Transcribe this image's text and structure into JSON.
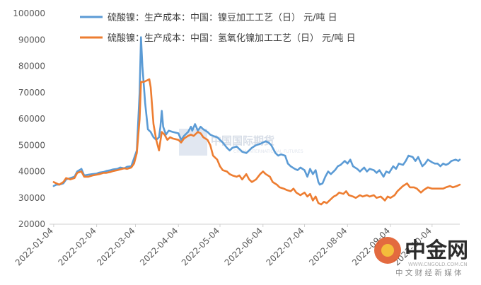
{
  "chart_data": {
    "type": "line",
    "title": "",
    "xlabel": "",
    "ylabel": "",
    "ylim": [
      20000,
      100000
    ],
    "yticks": [
      20000,
      30000,
      40000,
      50000,
      60000,
      70000,
      80000,
      90000,
      100000
    ],
    "ytick_labels": [
      "20000",
      "30000",
      "40000",
      "50000",
      "60000",
      "70000",
      "80000",
      "90000",
      "100000"
    ],
    "xlim": [
      "2022-01-01",
      "2022-10-24"
    ],
    "xticks": [
      "2022-01-04",
      "2022-02-04",
      "2022-03-04",
      "2022-04-04",
      "2022-05-04",
      "2022-06-04",
      "2022-07-04",
      "2022-08-04",
      "2022-09-04",
      "2022-10-04"
    ],
    "grid": false,
    "legend_position": "top",
    "series": [
      {
        "name": "硫酸镍：生产成本：中国：镍豆加工工艺（日） 元/吨 日",
        "color": "#5b9bd5",
        "points": [
          [
            "2022-01-04",
            34500
          ],
          [
            "2022-01-06",
            35000
          ],
          [
            "2022-01-08",
            35000
          ],
          [
            "2022-01-11",
            35500
          ],
          [
            "2022-01-13",
            37000
          ],
          [
            "2022-01-16",
            37500
          ],
          [
            "2022-01-19",
            38000
          ],
          [
            "2022-01-21",
            40000
          ],
          [
            "2022-01-24",
            41000
          ],
          [
            "2022-01-26",
            38500
          ],
          [
            "2022-01-29",
            38800
          ],
          [
            "2022-02-01",
            39000
          ],
          [
            "2022-02-04",
            39200
          ],
          [
            "2022-02-06",
            39600
          ],
          [
            "2022-02-09",
            39800
          ],
          [
            "2022-02-11",
            40200
          ],
          [
            "2022-02-14",
            40500
          ],
          [
            "2022-02-16",
            40800
          ],
          [
            "2022-02-19",
            41000
          ],
          [
            "2022-02-21",
            41500
          ],
          [
            "2022-02-24",
            41200
          ],
          [
            "2022-02-26",
            41800
          ],
          [
            "2022-03-01",
            42000
          ],
          [
            "2022-03-03",
            45000
          ],
          [
            "2022-03-05",
            48000
          ],
          [
            "2022-03-07",
            70000
          ],
          [
            "2022-03-08",
            91000
          ],
          [
            "2022-03-09",
            80000
          ],
          [
            "2022-03-11",
            66000
          ],
          [
            "2022-03-13",
            56000
          ],
          [
            "2022-03-15",
            55000
          ],
          [
            "2022-03-17",
            53000
          ],
          [
            "2022-03-19",
            52000
          ],
          [
            "2022-03-21",
            53000
          ],
          [
            "2022-03-22",
            57000
          ],
          [
            "2022-03-23",
            63000
          ],
          [
            "2022-03-24",
            57000
          ],
          [
            "2022-03-26",
            54000
          ],
          [
            "2022-03-28",
            55500
          ],
          [
            "2022-03-31",
            55000
          ],
          [
            "2022-04-04",
            54500
          ],
          [
            "2022-04-06",
            52000
          ],
          [
            "2022-04-08",
            53500
          ],
          [
            "2022-04-11",
            55000
          ],
          [
            "2022-04-13",
            57000
          ],
          [
            "2022-04-14",
            55500
          ],
          [
            "2022-04-16",
            58000
          ],
          [
            "2022-04-18",
            55500
          ],
          [
            "2022-04-20",
            57000
          ],
          [
            "2022-04-22",
            56000
          ],
          [
            "2022-04-25",
            55000
          ],
          [
            "2022-04-27",
            54000
          ],
          [
            "2022-04-29",
            53500
          ],
          [
            "2022-05-02",
            53000
          ],
          [
            "2022-05-04",
            52000
          ],
          [
            "2022-05-06",
            51000
          ],
          [
            "2022-05-09",
            49000
          ],
          [
            "2022-05-11",
            48000
          ],
          [
            "2022-05-13",
            49000
          ],
          [
            "2022-05-16",
            49500
          ],
          [
            "2022-05-18",
            48500
          ],
          [
            "2022-05-20",
            47500
          ],
          [
            "2022-05-23",
            47000
          ],
          [
            "2022-05-25",
            48000
          ],
          [
            "2022-05-27",
            49000
          ],
          [
            "2022-05-30",
            50000
          ],
          [
            "2022-06-02",
            50500
          ],
          [
            "2022-06-04",
            51000
          ],
          [
            "2022-06-06",
            51500
          ],
          [
            "2022-06-08",
            51000
          ],
          [
            "2022-06-10",
            50000
          ],
          [
            "2022-06-13",
            47000
          ],
          [
            "2022-06-15",
            46000
          ],
          [
            "2022-06-17",
            46500
          ],
          [
            "2022-06-20",
            46000
          ],
          [
            "2022-06-22",
            43000
          ],
          [
            "2022-06-24",
            42000
          ],
          [
            "2022-06-27",
            41000
          ],
          [
            "2022-06-29",
            40500
          ],
          [
            "2022-07-01",
            41500
          ],
          [
            "2022-07-04",
            40500
          ],
          [
            "2022-07-06",
            38000
          ],
          [
            "2022-07-08",
            41000
          ],
          [
            "2022-07-10",
            39000
          ],
          [
            "2022-07-12",
            40500
          ],
          [
            "2022-07-14",
            36000
          ],
          [
            "2022-07-15",
            35000
          ],
          [
            "2022-07-17",
            35500
          ],
          [
            "2022-07-19",
            38000
          ],
          [
            "2022-07-21",
            40000
          ],
          [
            "2022-07-23",
            39000
          ],
          [
            "2022-07-26",
            40500
          ],
          [
            "2022-07-28",
            42000
          ],
          [
            "2022-07-30",
            42500
          ],
          [
            "2022-08-02",
            44000
          ],
          [
            "2022-08-04",
            43000
          ],
          [
            "2022-08-06",
            44500
          ],
          [
            "2022-08-08",
            42000
          ],
          [
            "2022-08-11",
            41000
          ],
          [
            "2022-08-13",
            40000
          ],
          [
            "2022-08-16",
            41500
          ],
          [
            "2022-08-18",
            40000
          ],
          [
            "2022-08-20",
            41000
          ],
          [
            "2022-08-23",
            40500
          ],
          [
            "2022-08-25",
            39500
          ],
          [
            "2022-08-27",
            40500
          ],
          [
            "2022-08-30",
            38000
          ],
          [
            "2022-09-01",
            40000
          ],
          [
            "2022-09-03",
            39500
          ],
          [
            "2022-09-06",
            42000
          ],
          [
            "2022-09-08",
            41000
          ],
          [
            "2022-09-10",
            43000
          ],
          [
            "2022-09-13",
            42500
          ],
          [
            "2022-09-15",
            44000
          ],
          [
            "2022-09-17",
            46000
          ],
          [
            "2022-09-20",
            45500
          ],
          [
            "2022-09-22",
            44000
          ],
          [
            "2022-09-24",
            45500
          ],
          [
            "2022-09-27",
            42000
          ],
          [
            "2022-09-29",
            43000
          ],
          [
            "2022-10-01",
            44500
          ],
          [
            "2022-10-04",
            43500
          ],
          [
            "2022-10-06",
            43000
          ],
          [
            "2022-10-08",
            43000
          ],
          [
            "2022-10-10",
            42000
          ],
          [
            "2022-10-12",
            43000
          ],
          [
            "2022-10-14",
            42500
          ],
          [
            "2022-10-16",
            43000
          ],
          [
            "2022-10-18",
            44000
          ],
          [
            "2022-10-21",
            44500
          ],
          [
            "2022-10-23",
            44000
          ],
          [
            "2022-10-24",
            44500
          ]
        ]
      },
      {
        "name": "硫酸镍：生产成本：中国：氢氧化镍加工工艺（日） 元/吨 日",
        "color": "#ed7d31",
        "points": [
          [
            "2022-01-04",
            36000
          ],
          [
            "2022-01-06",
            35500
          ],
          [
            "2022-01-08",
            35000
          ],
          [
            "2022-01-11",
            36000
          ],
          [
            "2022-01-13",
            37500
          ],
          [
            "2022-01-16",
            37000
          ],
          [
            "2022-01-19",
            37500
          ],
          [
            "2022-01-21",
            39500
          ],
          [
            "2022-01-24",
            40000
          ],
          [
            "2022-01-26",
            38000
          ],
          [
            "2022-01-29",
            38000
          ],
          [
            "2022-02-01",
            38500
          ],
          [
            "2022-02-04",
            38800
          ],
          [
            "2022-02-06",
            39000
          ],
          [
            "2022-02-09",
            39500
          ],
          [
            "2022-02-11",
            39500
          ],
          [
            "2022-02-14",
            39800
          ],
          [
            "2022-02-16",
            40200
          ],
          [
            "2022-02-19",
            40500
          ],
          [
            "2022-02-21",
            40800
          ],
          [
            "2022-02-24",
            41200
          ],
          [
            "2022-02-26",
            41000
          ],
          [
            "2022-03-01",
            41500
          ],
          [
            "2022-03-03",
            43000
          ],
          [
            "2022-03-05",
            47000
          ],
          [
            "2022-03-07",
            60000
          ],
          [
            "2022-03-08",
            74000
          ],
          [
            "2022-03-10",
            74000
          ],
          [
            "2022-03-12",
            74500
          ],
          [
            "2022-03-14",
            75000
          ],
          [
            "2022-03-15",
            72000
          ],
          [
            "2022-03-17",
            58000
          ],
          [
            "2022-03-19",
            52000
          ],
          [
            "2022-03-21",
            48000
          ],
          [
            "2022-03-23",
            55000
          ],
          [
            "2022-03-25",
            54000
          ],
          [
            "2022-03-27",
            52000
          ],
          [
            "2022-03-29",
            53000
          ],
          [
            "2022-03-31",
            52500
          ],
          [
            "2022-04-04",
            52000
          ],
          [
            "2022-04-06",
            51000
          ],
          [
            "2022-04-08",
            52500
          ],
          [
            "2022-04-11",
            53500
          ],
          [
            "2022-04-13",
            54000
          ],
          [
            "2022-04-15",
            53500
          ],
          [
            "2022-04-18",
            55000
          ],
          [
            "2022-04-20",
            54500
          ],
          [
            "2022-04-22",
            53000
          ],
          [
            "2022-04-25",
            52000
          ],
          [
            "2022-04-27",
            50000
          ],
          [
            "2022-04-29",
            46000
          ],
          [
            "2022-05-02",
            44500
          ],
          [
            "2022-05-04",
            42000
          ],
          [
            "2022-05-06",
            40500
          ],
          [
            "2022-05-09",
            40000
          ],
          [
            "2022-05-11",
            39000
          ],
          [
            "2022-05-13",
            38500
          ],
          [
            "2022-05-16",
            38000
          ],
          [
            "2022-05-18",
            38500
          ],
          [
            "2022-05-20",
            37000
          ],
          [
            "2022-05-23",
            39000
          ],
          [
            "2022-05-25",
            37000
          ],
          [
            "2022-05-27",
            36000
          ],
          [
            "2022-05-30",
            37000
          ],
          [
            "2022-06-02",
            39000
          ],
          [
            "2022-06-04",
            40000
          ],
          [
            "2022-06-06",
            39000
          ],
          [
            "2022-06-09",
            38000
          ],
          [
            "2022-06-11",
            36000
          ],
          [
            "2022-06-14",
            35000
          ],
          [
            "2022-06-16",
            34000
          ],
          [
            "2022-06-19",
            33500
          ],
          [
            "2022-06-21",
            33000
          ],
          [
            "2022-06-24",
            32500
          ],
          [
            "2022-06-26",
            33500
          ],
          [
            "2022-06-28",
            32000
          ],
          [
            "2022-07-01",
            31000
          ],
          [
            "2022-07-04",
            32000
          ],
          [
            "2022-07-06",
            30500
          ],
          [
            "2022-07-08",
            31500
          ],
          [
            "2022-07-10",
            29000
          ],
          [
            "2022-07-12",
            30500
          ],
          [
            "2022-07-14",
            28000
          ],
          [
            "2022-07-16",
            27500
          ],
          [
            "2022-07-18",
            28500
          ],
          [
            "2022-07-20",
            28000
          ],
          [
            "2022-07-23",
            29500
          ],
          [
            "2022-07-25",
            30500
          ],
          [
            "2022-07-27",
            31000
          ],
          [
            "2022-07-29",
            32000
          ],
          [
            "2022-08-01",
            31500
          ],
          [
            "2022-08-03",
            32500
          ],
          [
            "2022-08-05",
            31000
          ],
          [
            "2022-08-08",
            30500
          ],
          [
            "2022-08-10",
            30000
          ],
          [
            "2022-08-13",
            31000
          ],
          [
            "2022-08-15",
            30500
          ],
          [
            "2022-08-18",
            31000
          ],
          [
            "2022-08-20",
            30500
          ],
          [
            "2022-08-23",
            31000
          ],
          [
            "2022-08-25",
            30000
          ],
          [
            "2022-08-28",
            30500
          ],
          [
            "2022-08-31",
            29000
          ],
          [
            "2022-09-02",
            30500
          ],
          [
            "2022-09-04",
            30000
          ],
          [
            "2022-09-07",
            31000
          ],
          [
            "2022-09-09",
            32500
          ],
          [
            "2022-09-11",
            33500
          ],
          [
            "2022-09-13",
            34500
          ],
          [
            "2022-09-16",
            35500
          ],
          [
            "2022-09-18",
            34000
          ],
          [
            "2022-09-21",
            34000
          ],
          [
            "2022-09-23",
            33500
          ],
          [
            "2022-09-26",
            32000
          ],
          [
            "2022-09-28",
            33000
          ],
          [
            "2022-10-01",
            34000
          ],
          [
            "2022-10-04",
            33500
          ],
          [
            "2022-10-07",
            33500
          ],
          [
            "2022-10-09",
            33500
          ],
          [
            "2022-10-12",
            33500
          ],
          [
            "2022-10-14",
            34000
          ],
          [
            "2022-10-17",
            34500
          ],
          [
            "2022-10-19",
            34000
          ],
          [
            "2022-10-22",
            34500
          ],
          [
            "2022-10-24",
            35000
          ]
        ]
      }
    ]
  },
  "watermarks": {
    "center_text": "中国国际期货",
    "center_small": "CHINA INTERNATIONAL FUTURES",
    "logo_text": "中金网",
    "logo_url": "WWW.CNGOLD.COM.CN",
    "logo_sub": "中 文 财 经 新 媒 体"
  }
}
